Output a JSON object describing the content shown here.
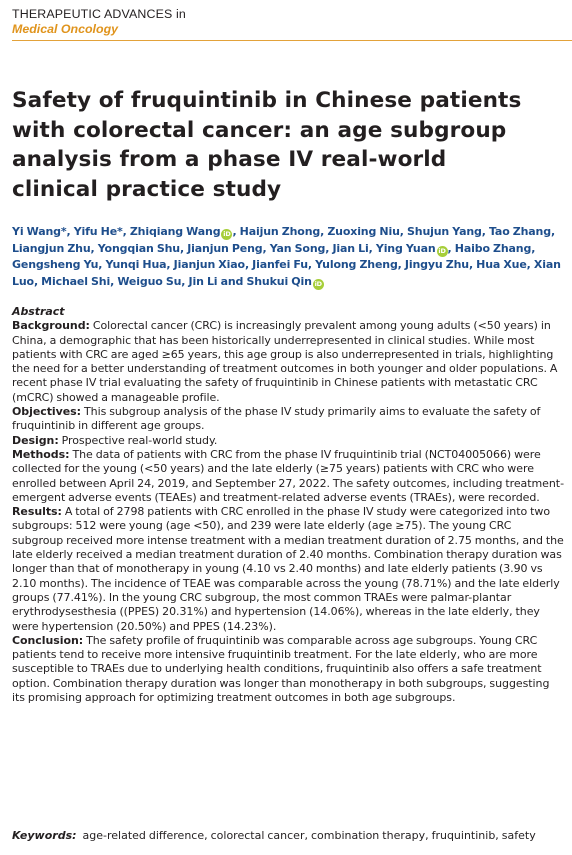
{
  "journal": {
    "name": "THERAPEUTIC ADVANCES in",
    "subject": "Medical Oncology"
  },
  "colors": {
    "accent": "#e0941d",
    "author_blue": "#1e4e8c",
    "orcid_green": "#a6ce39"
  },
  "article": {
    "title": "Safety of fruquintinib in Chinese patients with colorectal cancer: an age subgroup analysis from a phase IV real-world clinical practice study",
    "authors": [
      {
        "name": "Yi Wang*",
        "orcid": false
      },
      {
        "name": "Yifu He*",
        "orcid": false
      },
      {
        "name": "Zhiqiang Wang",
        "orcid": true
      },
      {
        "name": "Haijun Zhong",
        "orcid": false
      },
      {
        "name": "Zuoxing Niu",
        "orcid": false
      },
      {
        "name": "Shujun Yang",
        "orcid": false
      },
      {
        "name": "Tao Zhang",
        "orcid": false
      },
      {
        "name": "Liangjun Zhu",
        "orcid": false
      },
      {
        "name": "Yongqian Shu",
        "orcid": false
      },
      {
        "name": "Jianjun Peng",
        "orcid": false
      },
      {
        "name": "Yan Song",
        "orcid": false
      },
      {
        "name": "Jian Li",
        "orcid": false
      },
      {
        "name": "Ying Yuan",
        "orcid": true
      },
      {
        "name": "Haibo Zhang",
        "orcid": false
      },
      {
        "name": "Gengsheng Yu",
        "orcid": false
      },
      {
        "name": "Yunqi Hua",
        "orcid": false
      },
      {
        "name": "Jianjun Xiao",
        "orcid": false
      },
      {
        "name": "Jianfei Fu",
        "orcid": false
      },
      {
        "name": "Yulong Zheng",
        "orcid": false
      },
      {
        "name": "Jingyu Zhu",
        "orcid": false
      },
      {
        "name": "Hua Xue",
        "orcid": false
      },
      {
        "name": "Xian Luo",
        "orcid": false
      },
      {
        "name": "Michael Shi",
        "orcid": false
      },
      {
        "name": "Weiguo Su",
        "orcid": false
      },
      {
        "name": "Jin Li",
        "orcid": false
      },
      {
        "name": "Shukui Qin",
        "orcid": true
      }
    ],
    "author_separator": ", ",
    "author_last_separator": " and ",
    "orcid_glyph": "iD"
  },
  "abstract": {
    "heading": "Abstract",
    "sections": [
      {
        "label": "Background:",
        "text": "Colorectal cancer (CRC) is increasingly prevalent among young adults (<50 years) in China, a demographic that has been historically underrepresented in clinical studies. While most patients with CRC are aged ≥65 years, this age group is also underrepresented in trials, highlighting the need for a better understanding of treatment outcomes in both younger and older populations. A recent phase IV trial evaluating the safety of fruquintinib in Chinese patients with metastatic CRC (mCRC) showed a manageable profile."
      },
      {
        "label": "Objectives:",
        "text": "This subgroup analysis of the phase IV study primarily aims to evaluate the safety of fruquintinib in different age groups."
      },
      {
        "label": "Design:",
        "text": "Prospective real-world study."
      },
      {
        "label": "Methods:",
        "text": "The data of patients with CRC from the phase IV fruquintinib trial (NCT04005066) were collected for the young (<50 years) and the late elderly (≥75 years) patients with CRC who were enrolled between April 24, 2019, and September 27, 2022. The safety outcomes, including treatment-emergent adverse events (TEAEs) and treatment-related adverse events (TRAEs), were recorded."
      },
      {
        "label": "Results:",
        "text": "A total of 2798 patients with CRC enrolled in the phase IV study were categorized into two subgroups: 512 were young (age <50), and 239 were late elderly (age ≥75). The young CRC subgroup received more intense treatment with a median treatment duration of 2.75 months, and the late elderly received a median treatment duration of 2.40 months. Combination therapy duration was longer than that of monotherapy in young (4.10 vs 2.40 months) and late elderly patients (3.90 vs 2.10 months). The incidence of TEAE was comparable across the young (78.71%) and the late elderly groups (77.41%). In the young CRC subgroup, the most common TRAEs were palmar-plantar erythrodysesthesia ((PPES) 20.31%) and hypertension (14.06%), whereas in the late elderly, they were hypertension (20.50%) and PPES (14.23%)."
      },
      {
        "label": "Conclusion:",
        "text": "The safety profile of fruquintinib was comparable across age subgroups. Young CRC patients tend to receive more intensive fruquintinib treatment. For the late elderly, who are more susceptible to TRAEs due to underlying health conditions, fruquintinib also offers a safe treatment option. Combination therapy duration was longer than monotherapy in both subgroups, suggesting its promising approach for optimizing treatment outcomes in both age subgroups."
      }
    ]
  },
  "keywords": {
    "label": "Keywords:",
    "text": "age-related difference, colorectal cancer, combination therapy, fruquintinib, safety"
  }
}
